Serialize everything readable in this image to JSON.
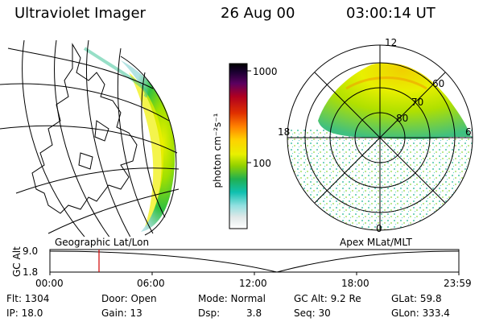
{
  "header": {
    "instrument": "Ultraviolet Imager",
    "date": "26 Aug 00",
    "time": "03:00:14 UT"
  },
  "colorbar": {
    "unit_label": "photon cm⁻²s⁻¹",
    "ticks": [
      "1000",
      "100"
    ],
    "colors": [
      "#000000",
      "#1a0030",
      "#5a0060",
      "#a00020",
      "#e02000",
      "#ff7000",
      "#ffc000",
      "#f0f000",
      "#b0e000",
      "#40c000",
      "#00b060",
      "#00c0c0",
      "#a0e0e0",
      "#e0e0e0",
      "#ffffff"
    ]
  },
  "geo_panel": {
    "caption": "Geographic Lat/Lon"
  },
  "polar_panel": {
    "caption": "Apex MLat/MLT",
    "mlt_labels": [
      "12",
      "18",
      "6",
      "0"
    ],
    "lat_labels": [
      "60",
      "70",
      "80"
    ]
  },
  "alt_plot": {
    "ylabel": "GC Alt",
    "yticks": [
      "9.0",
      "1.8"
    ],
    "xticks": [
      "00:00",
      "06:00",
      "12:00",
      "18:00",
      "23:59"
    ],
    "marker_color": "#d00000"
  },
  "footer": {
    "flt": "Flt: 1304",
    "ip": "IP: 18.0",
    "door": "Door: Open",
    "gain": "Gain: 13",
    "mode": "Mode: Normal",
    "dsp_label": "Dsp:",
    "dsp_value": "3.8",
    "gcalt": "GC Alt: 9.2 Re",
    "seq": "Seq: 30",
    "glat": "GLat: 59.8",
    "glon": "GLon: 333.4"
  }
}
